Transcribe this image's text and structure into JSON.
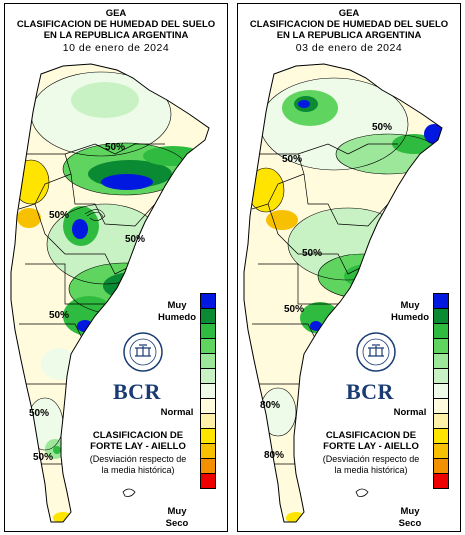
{
  "panels": [
    {
      "title_line1": "GEA",
      "title_line2": "CLASIFICACION DE HUMEDAD DEL SUELO",
      "title_line3": "EN LA REPUBLICA ARGENTINA",
      "date": "10 de enero de 2024",
      "contour_labels": [
        "50%",
        "50%",
        "50%",
        "50%",
        "50%",
        "50%"
      ],
      "logo_text": "BCR",
      "seal_text": "BOLSA DE COMERCIO DE ROSARIO"
    },
    {
      "title_line1": "GEA",
      "title_line2": "CLASIFICACION DE HUMEDAD DEL SUELO",
      "title_line3": "EN LA REPUBLICA ARGENTINA",
      "date": "03 de enero de 2024",
      "contour_labels": [
        "50%",
        "50%",
        "50%",
        "50%",
        "80%",
        "80%"
      ],
      "logo_text": "BCR",
      "seal_text": "BOLSA DE COMERCIO DE ROSARIO"
    }
  ],
  "legend": {
    "wet_label_1": "Muy",
    "wet_label_2": "Humedo",
    "normal_label": "Normal",
    "dry_label_1": "Muy",
    "dry_label_2": "Seco",
    "classification_line1": "CLASIFICACION DE",
    "classification_line2": "FORTE LAY - AIELLO",
    "description_line1": "(Desviación respecto de",
    "description_line2": "la media histórica)",
    "colors": [
      "#0018e0",
      "#0a8a32",
      "#2fbb3f",
      "#5fd55f",
      "#9ce79a",
      "#c9f2c4",
      "#eefbe9",
      "#fffbdc",
      "#fff2a8",
      "#ffe400",
      "#f7c000",
      "#f29000",
      "#ee0000"
    ]
  }
}
